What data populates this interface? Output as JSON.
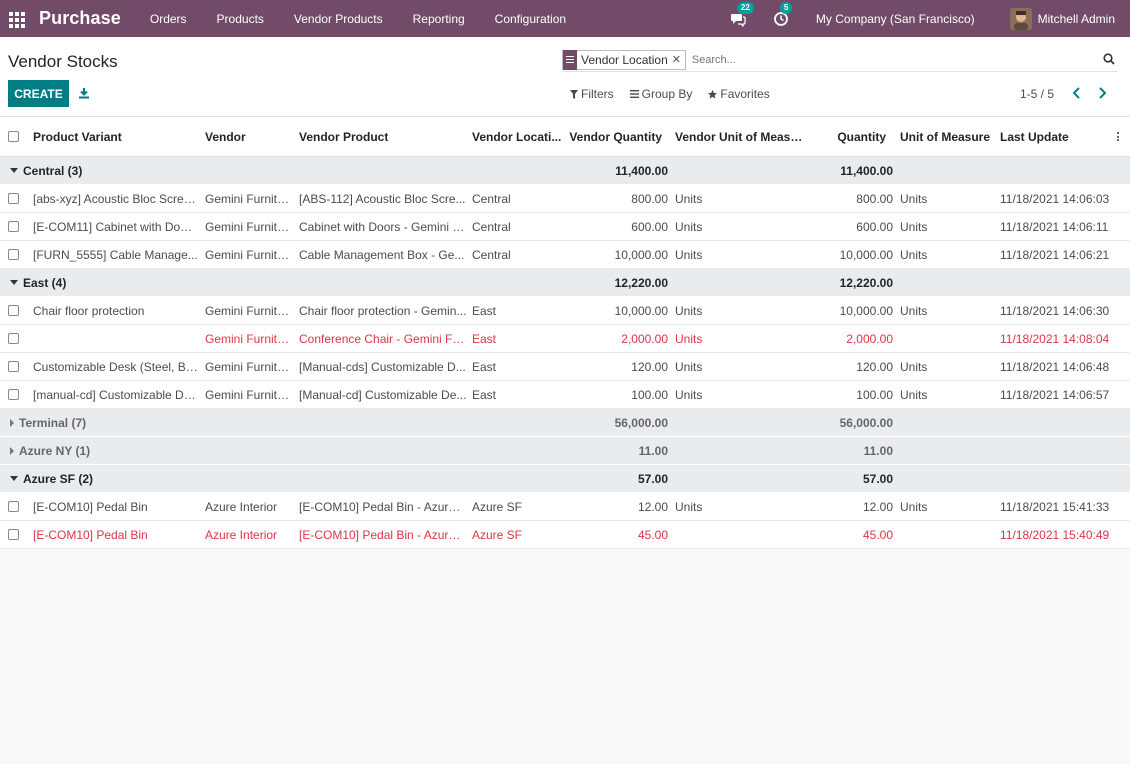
{
  "nav": {
    "brand": "Purchase",
    "menu": [
      "Orders",
      "Products",
      "Vendor Products",
      "Reporting",
      "Configuration"
    ],
    "messages_count": "22",
    "activities_count": "5",
    "company": "My Company (San Francisco)",
    "user": "Mitchell Admin"
  },
  "control": {
    "title": "Vendor Stocks",
    "create_label": "CREATE",
    "facet": "Vendor Location",
    "search_placeholder": "Search...",
    "filters_label": "Filters",
    "groupby_label": "Group By",
    "favorites_label": "Favorites",
    "pager": "1-5 / 5"
  },
  "columns": [
    "Product Variant",
    "Vendor",
    "Vendor Product",
    "Vendor Locati...",
    "Vendor Quantity",
    "Vendor Unit of Measu...",
    "Quantity",
    "Unit of Measure",
    "Last Update"
  ],
  "groups": [
    {
      "label": "Central (3)",
      "open": true,
      "vendor_qty": "11,400.00",
      "qty": "11,400.00",
      "rows": [
        {
          "product": "[abs-xyz] Acoustic Bloc Scree...",
          "vendor": "Gemini Furnitu...",
          "vendor_product": "[ABS-112] Acoustic Bloc Scre...",
          "location": "Central",
          "vendor_qty": "800.00",
          "vendor_uom": "Units",
          "qty": "800.00",
          "uom": "Units",
          "updated": "11/18/2021 14:06:03",
          "warn": false
        },
        {
          "product": "[E-COM11] Cabinet with Door...",
          "vendor": "Gemini Furnitu...",
          "vendor_product": "Cabinet with Doors - Gemini F...",
          "location": "Central",
          "vendor_qty": "600.00",
          "vendor_uom": "Units",
          "qty": "600.00",
          "uom": "Units",
          "updated": "11/18/2021 14:06:11",
          "warn": false
        },
        {
          "product": "[FURN_5555] Cable Manage...",
          "vendor": "Gemini Furnitu...",
          "vendor_product": "Cable Management Box - Ge...",
          "location": "Central",
          "vendor_qty": "10,000.00",
          "vendor_uom": "Units",
          "qty": "10,000.00",
          "uom": "Units",
          "updated": "11/18/2021 14:06:21",
          "warn": false
        }
      ]
    },
    {
      "label": "East (4)",
      "open": true,
      "vendor_qty": "12,220.00",
      "qty": "12,220.00",
      "rows": [
        {
          "product": "Chair floor protection",
          "vendor": "Gemini Furnitu...",
          "vendor_product": "Chair floor protection - Gemin...",
          "location": "East",
          "vendor_qty": "10,000.00",
          "vendor_uom": "Units",
          "qty": "10,000.00",
          "uom": "Units",
          "updated": "11/18/2021 14:06:30",
          "warn": false
        },
        {
          "product": "",
          "vendor": "Gemini Furnitu...",
          "vendor_product": "Conference Chair - Gemini Fu...",
          "location": "East",
          "vendor_qty": "2,000.00",
          "vendor_uom": "Units",
          "qty": "2,000.00",
          "uom": "",
          "updated": "11/18/2021 14:08:04",
          "warn": true
        },
        {
          "product": "Customizable Desk (Steel, Bla...",
          "vendor": "Gemini Furnitu...",
          "vendor_product": "[Manual-cds] Customizable D...",
          "location": "East",
          "vendor_qty": "120.00",
          "vendor_uom": "Units",
          "qty": "120.00",
          "uom": "Units",
          "updated": "11/18/2021 14:06:48",
          "warn": false
        },
        {
          "product": "[manual-cd] Customizable De...",
          "vendor": "Gemini Furnitu...",
          "vendor_product": "[Manual-cd] Customizable De...",
          "location": "East",
          "vendor_qty": "100.00",
          "vendor_uom": "Units",
          "qty": "100.00",
          "uom": "Units",
          "updated": "11/18/2021 14:06:57",
          "warn": false
        }
      ]
    },
    {
      "label": "Terminal (7)",
      "open": false,
      "vendor_qty": "56,000.00",
      "qty": "56,000.00",
      "rows": []
    },
    {
      "label": "Azure NY (1)",
      "open": false,
      "vendor_qty": "11.00",
      "qty": "11.00",
      "rows": []
    },
    {
      "label": "Azure SF (2)",
      "open": true,
      "vendor_qty": "57.00",
      "qty": "57.00",
      "rows": [
        {
          "product": "[E-COM10] Pedal Bin",
          "vendor": "Azure Interior",
          "vendor_product": "[E-COM10] Pedal Bin - Azure I...",
          "location": "Azure SF",
          "vendor_qty": "12.00",
          "vendor_uom": "Units",
          "qty": "12.00",
          "uom": "Units",
          "updated": "11/18/2021 15:41:33",
          "warn": false
        },
        {
          "product": "[E-COM10] Pedal Bin",
          "vendor": "Azure Interior",
          "vendor_product": "[E-COM10] Pedal Bin - Azure I...",
          "location": "Azure SF",
          "vendor_qty": "45.00",
          "vendor_uom": "",
          "qty": "45.00",
          "uom": "",
          "updated": "11/18/2021 15:40:49",
          "warn": true
        }
      ]
    }
  ]
}
